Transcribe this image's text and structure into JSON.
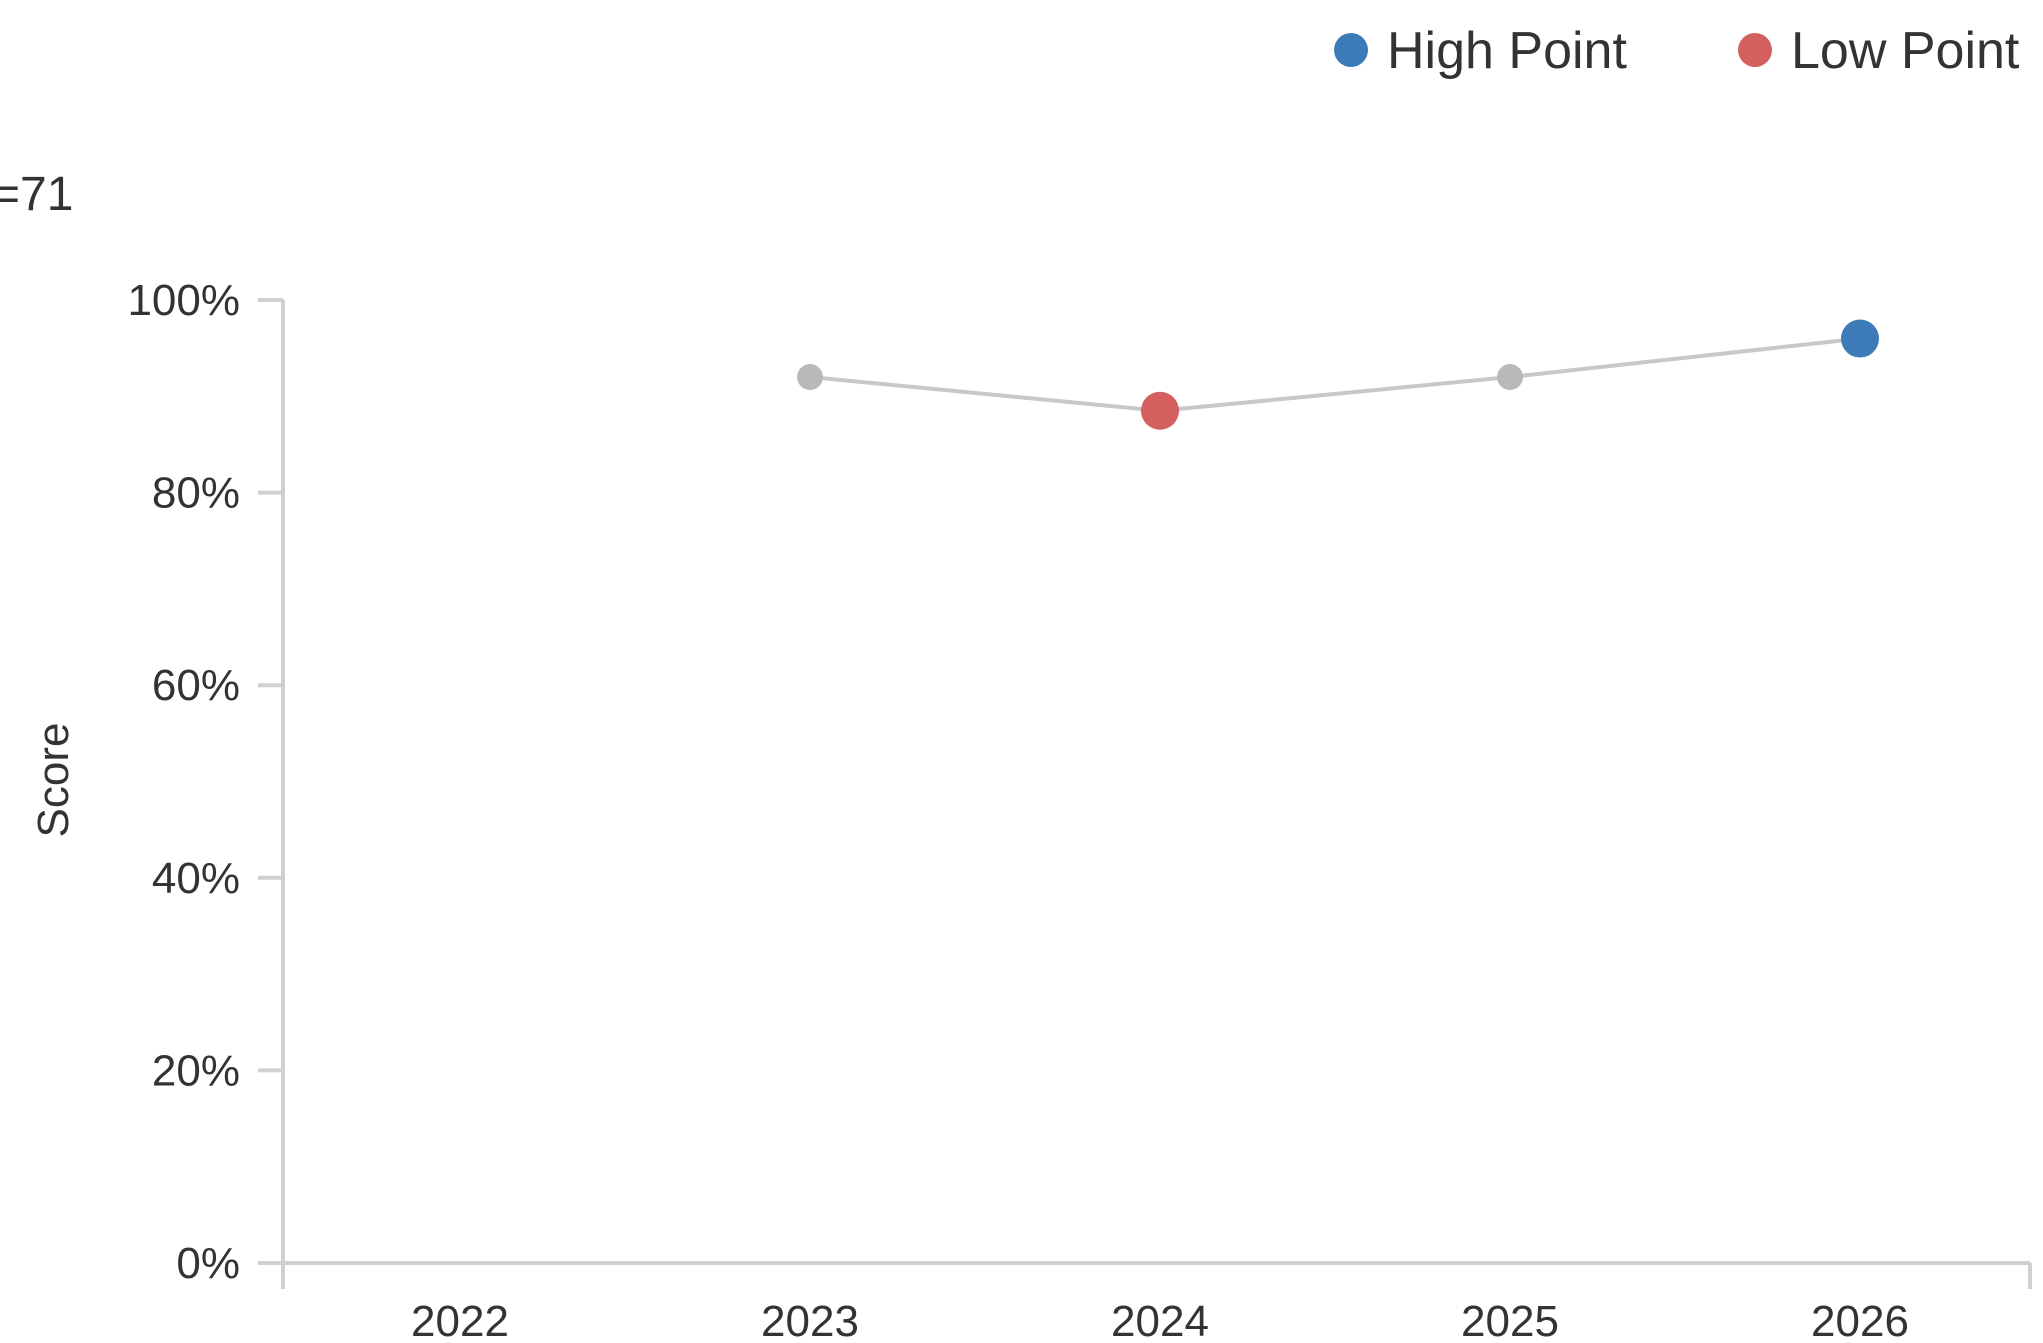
{
  "chart_data": {
    "type": "line",
    "annotation": "=71",
    "ylabel": "Score",
    "categories": [
      "2022",
      "2023",
      "2024",
      "2025",
      "2026"
    ],
    "series": [
      {
        "values": [
          null,
          92,
          88.5,
          92,
          96
        ]
      }
    ],
    "ylim": [
      0,
      100
    ],
    "yticks": [
      "0%",
      "20%",
      "40%",
      "60%",
      "80%",
      "100%"
    ],
    "grid": false,
    "legend_position": "top-right",
    "legend": [
      {
        "label": "High Point",
        "color": "#3d7ab8"
      },
      {
        "label": "Low Point",
        "color": "#d45f5f"
      }
    ],
    "highlights": {
      "high_index": 4,
      "low_index": 2
    },
    "colors": {
      "line": "#c8c8c8",
      "point": "#b9b9b9",
      "axis": "#d0d0d0"
    }
  }
}
